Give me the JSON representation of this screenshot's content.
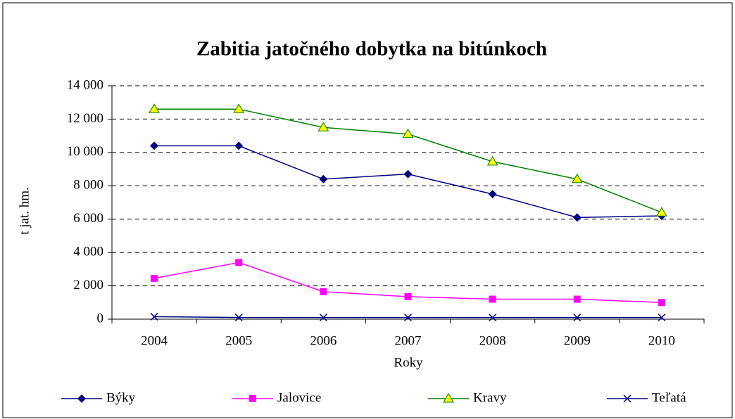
{
  "chart_data": {
    "type": "line",
    "title": "Zabitia jatočného dobytka na bitúnkoch",
    "x_label": "Roky",
    "y_label": "t jat. hm.",
    "categories": [
      "2004",
      "2005",
      "2006",
      "2007",
      "2008",
      "2009",
      "2010"
    ],
    "series": [
      {
        "name": "Býky",
        "color": "#000080",
        "marker": "diamond",
        "values": [
          10400,
          10400,
          8400,
          8700,
          7500,
          6100,
          6200
        ]
      },
      {
        "name": "Jalovice",
        "color": "#ff00ff",
        "marker": "square",
        "values": [
          2450,
          3400,
          1650,
          1350,
          1200,
          1200,
          1000
        ]
      },
      {
        "name": "Kravy",
        "color": "#008000",
        "marker_fill": "#ffff00",
        "marker": "triangle",
        "values": [
          12600,
          12600,
          11500,
          11100,
          9450,
          8400,
          6400
        ]
      },
      {
        "name": "Teľatá",
        "color": "#000080",
        "marker": "x",
        "values": [
          150,
          100,
          100,
          100,
          100,
          100,
          100
        ]
      }
    ],
    "ylim": [
      0,
      14000
    ],
    "yticks": [
      {
        "value": 0,
        "label": "0"
      },
      {
        "value": 2000,
        "label": "2 000"
      },
      {
        "value": 4000,
        "label": "4 000"
      },
      {
        "value": 6000,
        "label": "6 000"
      },
      {
        "value": 8000,
        "label": "8 000"
      },
      {
        "value": 10000,
        "label": "10 000"
      },
      {
        "value": 12000,
        "label": "12 000"
      },
      {
        "value": 14000,
        "label": "14 000"
      }
    ],
    "grid": true,
    "legend": "bottom"
  }
}
